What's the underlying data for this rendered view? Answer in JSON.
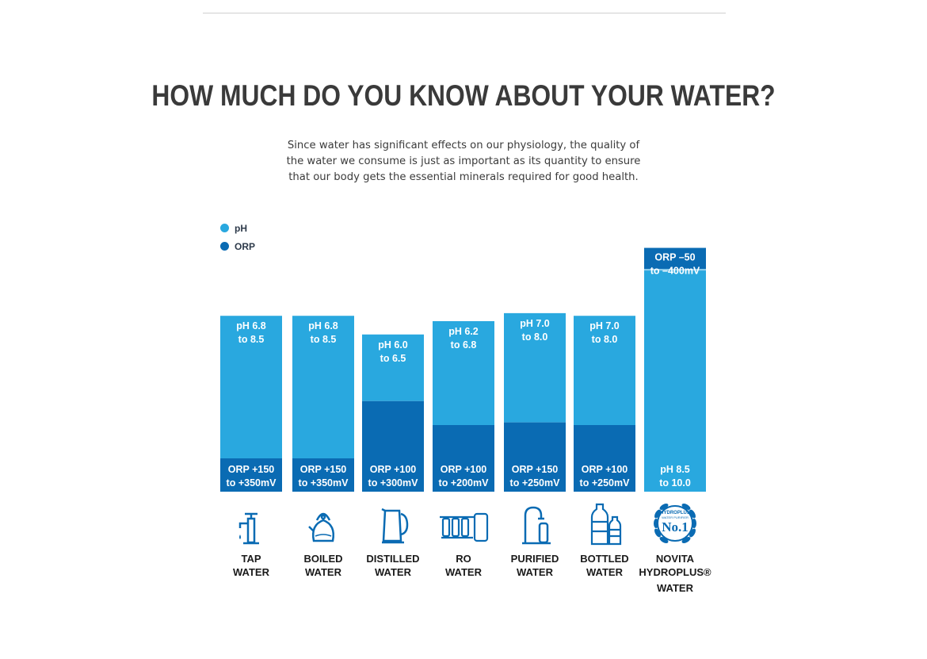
{
  "headline": "HOW MUCH DO YOU KNOW ABOUT YOUR WATER?",
  "intro_lines": [
    "Since water has significant effects on our physiology, the quality of",
    "the water we consume is just as important as its quantity to ensure",
    "that our body gets the essential minerals required for good health."
  ],
  "legend": [
    {
      "label": "pH",
      "color": "#29a8df"
    },
    {
      "label": "ORP",
      "color": "#0a6bb3"
    }
  ],
  "colors": {
    "ph": "#29a8df",
    "orp": "#0a6bb3"
  },
  "categories": [
    {
      "lines": [
        "TAP",
        "WATER"
      ],
      "icon": "tap-icon"
    },
    {
      "lines": [
        "BOILED",
        "WATER"
      ],
      "icon": "kettle-icon"
    },
    {
      "lines": [
        "DISTILLED",
        "WATER"
      ],
      "icon": "electric-kettle-icon"
    },
    {
      "lines": [
        "RO",
        "WATER"
      ],
      "icon": "ro-filter-icon"
    },
    {
      "lines": [
        "PURIFIED",
        "WATER"
      ],
      "icon": "purifier-faucet-icon"
    },
    {
      "lines": [
        "BOTTLED",
        "WATER"
      ],
      "icon": "bottles-icon"
    },
    {
      "lines": [
        "NOVITA",
        "HYDROPLUS®",
        "WATER"
      ],
      "icon": "laurel-badge-icon"
    }
  ],
  "badge": {
    "top_text": "HYDROPLUS",
    "sub_text": "WATER PURIFIER",
    "main_text": "No.1"
  },
  "chart_data": {
    "type": "bar",
    "stacked": true,
    "categories": [
      "TAP WATER",
      "BOILED WATER",
      "DISTILLED WATER",
      "RO WATER",
      "PURIFIED WATER",
      "BOTTLED WATER",
      "NOVITA HYDROPLUS® WATER"
    ],
    "series": [
      {
        "name": "ORP",
        "values": [
          0.125,
          0.125,
          0.34,
          0.25,
          0.26,
          0.25,
          0.085
        ],
        "labels": [
          [
            "ORP +150",
            "to +350mV"
          ],
          [
            "ORP +150",
            "to +350mV"
          ],
          [
            "ORP +100",
            "to +300mV"
          ],
          [
            "ORP +100",
            "to +200mV"
          ],
          [
            "ORP +150",
            "to +250mV"
          ],
          [
            "ORP +100",
            "to +250mV"
          ],
          [
            "ORP –50",
            "to –400mV"
          ]
        ]
      },
      {
        "name": "pH",
        "values": [
          0.535,
          0.535,
          0.25,
          0.39,
          0.41,
          0.41,
          0.83
        ],
        "labels": [
          [
            "pH 6.8",
            "to 8.5"
          ],
          [
            "pH 6.8",
            "to 8.5"
          ],
          [
            "pH 6.0",
            "to 6.5"
          ],
          [
            "pH 6.2",
            "to 6.8"
          ],
          [
            "pH 7.0",
            "to 8.0"
          ],
          [
            "pH 7.0",
            "to 8.0"
          ],
          [
            "pH 8.5",
            "to 10.0"
          ]
        ]
      }
    ],
    "orp_position": [
      "bottom",
      "bottom",
      "bottom",
      "bottom",
      "bottom",
      "bottom",
      "top"
    ],
    "ylim": [
      0,
      1
    ],
    "legend_position": "top-left",
    "grid": false
  }
}
